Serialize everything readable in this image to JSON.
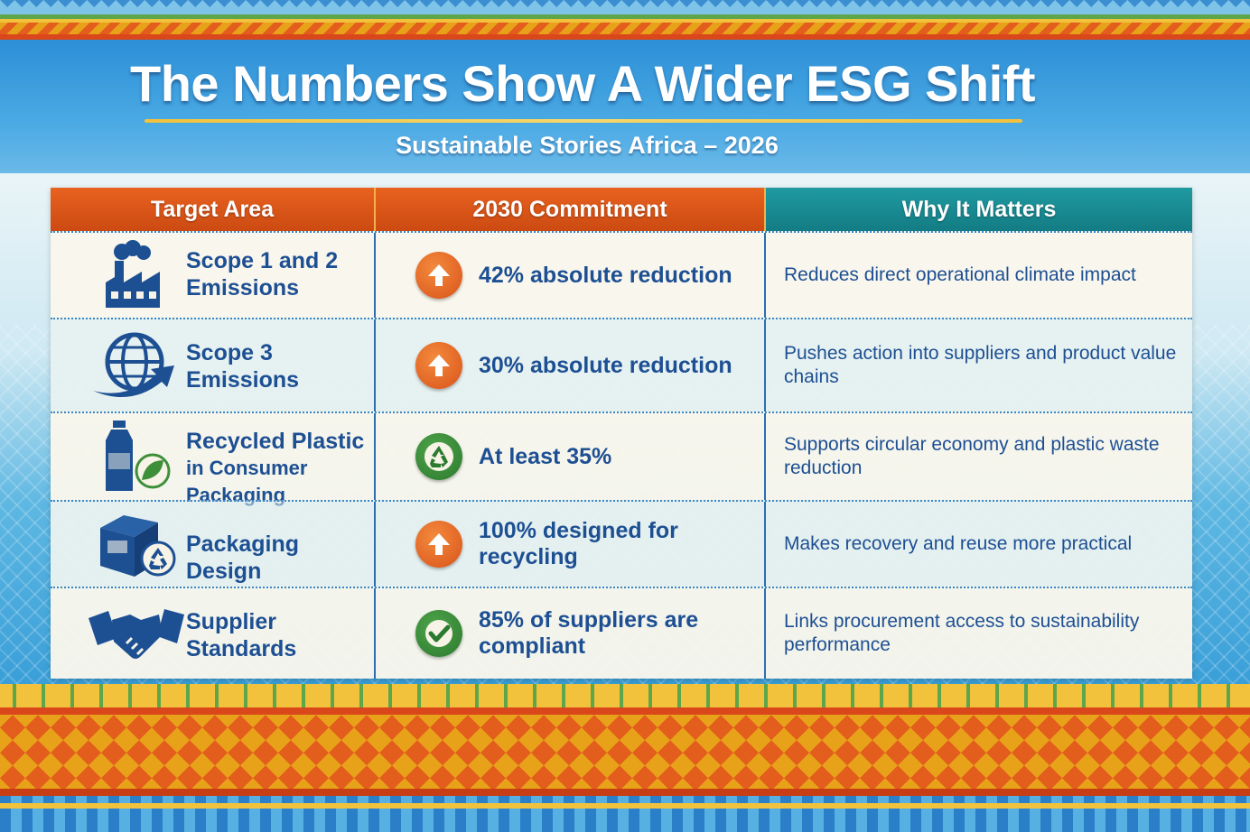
{
  "header": {
    "title": "The Numbers Show A Wider ESG Shift",
    "subtitle": "Sustainable Stories Africa – 2026"
  },
  "table": {
    "columns": [
      "Target Area",
      "2030 Commitment",
      "Why It Matters"
    ],
    "rows": [
      {
        "icon": "factory-icon",
        "area_line1": "Scope 1 and 2",
        "area_line2": "Emissions",
        "commitment_icon": "arrow-up-icon",
        "commitment": "42% absolute reduction",
        "why": "Reduces direct operational climate impact"
      },
      {
        "icon": "globe-arrow-icon",
        "area_line1": "Scope 3",
        "area_line2": "Emissions",
        "commitment_icon": "arrow-up-icon",
        "commitment": "30% absolute reduction",
        "why": "Pushes action into suppliers and product value chains"
      },
      {
        "icon": "bottle-leaf-icon",
        "area_line1": "Recycled Plastic",
        "area_line2": "in Consumer Packaging",
        "commitment_icon": "recycle-icon",
        "commitment": "At least 35%",
        "why": "Supports circular economy and plastic waste reduction"
      },
      {
        "icon": "box-recycle-icon",
        "area_line1": "Packaging Design",
        "area_line2": "",
        "commitment_icon": "arrow-up-icon",
        "commitment": "100% designed for recycling",
        "why": "Makes recovery and reuse more practical"
      },
      {
        "icon": "handshake-icon",
        "area_line1": "Supplier",
        "area_line2": "Standards",
        "commitment_icon": "checkmark-icon",
        "commitment": "85% of suppliers are compliant",
        "why": "Links procurement access to sustainability performance"
      }
    ]
  },
  "colors": {
    "header_orange": "#d9531a",
    "header_teal": "#137c84",
    "text_blue": "#1d4f93",
    "icon_green": "#2b7a2e"
  }
}
